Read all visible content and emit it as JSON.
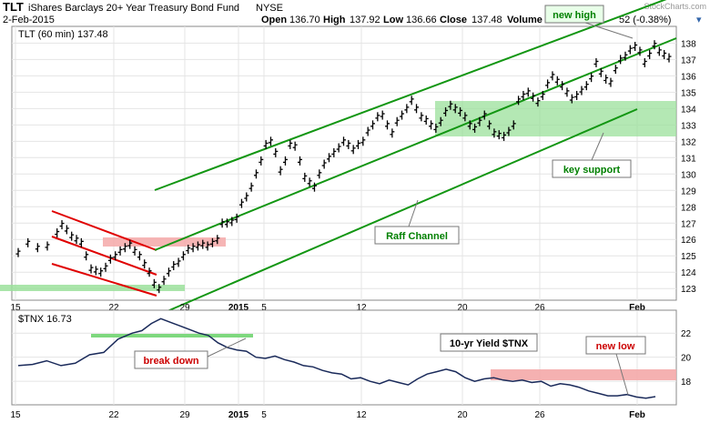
{
  "header": {
    "ticker": "TLT",
    "name": "iShares Barclays 20+ Year Treasury Bond Fund",
    "exchange": "NYSE",
    "date": "2-Feb-2015",
    "open_label": "Open",
    "open": "136.70",
    "high_label": "High",
    "high": "137.92",
    "low_label": "Low",
    "low": "136.66",
    "close_label": "Close",
    "close": "137.48",
    "volume_label": "Volume",
    "change": "52 (-0.38%)",
    "watermark": "StockCharts.com"
  },
  "chart_data": [
    {
      "type": "candlestick",
      "legend": "TLT (60 min) 137.48",
      "ylim": [
        122.4,
        138.8
      ],
      "y_ticks": [
        123,
        124,
        125,
        126,
        127,
        128,
        129,
        130,
        131,
        132,
        133,
        134,
        135,
        136,
        137,
        138
      ],
      "x_ticks": [
        "15",
        "22",
        "29",
        "2015",
        "5",
        "12",
        "20",
        "26",
        "Feb"
      ],
      "series_points": [
        [
          0,
          125.2
        ],
        [
          2,
          125.8
        ],
        [
          4,
          125.5
        ],
        [
          6,
          125.6
        ],
        [
          8,
          126.4
        ],
        [
          9,
          126.9
        ],
        [
          10,
          126.6
        ],
        [
          11,
          126.2
        ],
        [
          12,
          126.0
        ],
        [
          13,
          125.8
        ],
        [
          14,
          125.0
        ],
        [
          15,
          124.2
        ],
        [
          16,
          124.1
        ],
        [
          17,
          124.0
        ],
        [
          18,
          124.3
        ],
        [
          19,
          124.8
        ],
        [
          20,
          125.0
        ],
        [
          21,
          125.3
        ],
        [
          22,
          125.5
        ],
        [
          23,
          125.7
        ],
        [
          24,
          125.3
        ],
        [
          25,
          125.0
        ],
        [
          26,
          124.5
        ],
        [
          27,
          124.0
        ],
        [
          28,
          123.3
        ],
        [
          29,
          123.0
        ],
        [
          30,
          123.5
        ],
        [
          31,
          124.0
        ],
        [
          32,
          124.4
        ],
        [
          33,
          124.6
        ],
        [
          34,
          125.0
        ],
        [
          35,
          125.4
        ],
        [
          36,
          125.5
        ],
        [
          37,
          125.6
        ],
        [
          38,
          125.7
        ],
        [
          39,
          125.6
        ],
        [
          40,
          125.8
        ],
        [
          41,
          126.0
        ],
        [
          42,
          127.0
        ],
        [
          43,
          127.0
        ],
        [
          44,
          127.1
        ],
        [
          45,
          127.3
        ],
        [
          46,
          128.2
        ],
        [
          47,
          128.6
        ],
        [
          48,
          129.2
        ],
        [
          49,
          130.0
        ],
        [
          50,
          130.8
        ],
        [
          51,
          131.8
        ],
        [
          52,
          132.0
        ],
        [
          53,
          131.3
        ],
        [
          54,
          130.2
        ],
        [
          55,
          130.8
        ],
        [
          56,
          131.8
        ],
        [
          57,
          131.7
        ],
        [
          58,
          130.8
        ],
        [
          59,
          129.8
        ],
        [
          60,
          129.5
        ],
        [
          61,
          129.2
        ],
        [
          62,
          130.0
        ],
        [
          63,
          130.6
        ],
        [
          64,
          131.0
        ],
        [
          65,
          131.3
        ],
        [
          66,
          131.6
        ],
        [
          67,
          132.0
        ],
        [
          68,
          131.8
        ],
        [
          69,
          131.5
        ],
        [
          70,
          131.8
        ],
        [
          71,
          132.0
        ],
        [
          72,
          132.6
        ],
        [
          73,
          133.0
        ],
        [
          74,
          133.5
        ],
        [
          75,
          133.6
        ],
        [
          76,
          133.0
        ],
        [
          77,
          132.5
        ],
        [
          78,
          133.2
        ],
        [
          79,
          133.6
        ],
        [
          80,
          134.0
        ],
        [
          81,
          134.5
        ],
        [
          82,
          134.0
        ],
        [
          83,
          133.5
        ],
        [
          84,
          133.3
        ],
        [
          85,
          133.0
        ],
        [
          86,
          132.8
        ],
        [
          87,
          133.2
        ],
        [
          88,
          133.8
        ],
        [
          89,
          134.2
        ],
        [
          90,
          134.0
        ],
        [
          91,
          133.8
        ],
        [
          92,
          133.5
        ],
        [
          93,
          133.0
        ],
        [
          94,
          132.8
        ],
        [
          95,
          133.2
        ],
        [
          96,
          133.6
        ],
        [
          97,
          133.0
        ],
        [
          98,
          132.5
        ],
        [
          99,
          132.4
        ],
        [
          100,
          132.3
        ],
        [
          101,
          132.6
        ],
        [
          102,
          133.0
        ],
        [
          103,
          134.5
        ],
        [
          104,
          134.8
        ],
        [
          105,
          135.0
        ],
        [
          106,
          134.7
        ],
        [
          107,
          134.4
        ],
        [
          108,
          134.8
        ],
        [
          109,
          135.5
        ],
        [
          110,
          136.0
        ],
        [
          111,
          135.7
        ],
        [
          112,
          135.4
        ],
        [
          113,
          135.0
        ],
        [
          114,
          134.6
        ],
        [
          115,
          134.8
        ],
        [
          116,
          135.1
        ],
        [
          117,
          135.4
        ],
        [
          118,
          135.9
        ],
        [
          119,
          136.8
        ],
        [
          120,
          136.2
        ],
        [
          121,
          135.8
        ],
        [
          122,
          135.6
        ],
        [
          123,
          136.4
        ],
        [
          124,
          137.0
        ],
        [
          125,
          137.2
        ],
        [
          126,
          137.6
        ],
        [
          127,
          137.8
        ],
        [
          128,
          137.5
        ],
        [
          129,
          136.8
        ],
        [
          130,
          137.3
        ],
        [
          131,
          137.9
        ],
        [
          132,
          137.5
        ],
        [
          133,
          137.3
        ],
        [
          134,
          137.1
        ]
      ],
      "annotations": [
        {
          "text": "new high",
          "color": "#008000"
        },
        {
          "text": "key support",
          "color": "#008000"
        },
        {
          "text": "Raff Channel",
          "color": "#008000"
        }
      ]
    },
    {
      "type": "line",
      "legend": "$TNX 16.73",
      "label": "10-yr Yield $TNX",
      "ylim": [
        16.2,
        23.6
      ],
      "y_ticks": [
        18,
        20,
        22
      ],
      "x_ticks": [
        "15",
        "22",
        "29",
        "2015",
        "5",
        "12",
        "20",
        "26",
        "Feb"
      ],
      "series_points": [
        [
          0,
          19.3
        ],
        [
          3,
          19.4
        ],
        [
          6,
          19.7
        ],
        [
          9,
          19.3
        ],
        [
          12,
          19.5
        ],
        [
          15,
          20.2
        ],
        [
          18,
          20.4
        ],
        [
          21,
          21.5
        ],
        [
          24,
          22.0
        ],
        [
          26,
          22.2
        ],
        [
          28,
          22.8
        ],
        [
          30,
          23.2
        ],
        [
          32,
          22.9
        ],
        [
          34,
          22.6
        ],
        [
          36,
          22.3
        ],
        [
          38,
          22.0
        ],
        [
          40,
          21.8
        ],
        [
          42,
          21.2
        ],
        [
          44,
          20.8
        ],
        [
          46,
          20.6
        ],
        [
          48,
          20.5
        ],
        [
          50,
          20.0
        ],
        [
          52,
          19.9
        ],
        [
          54,
          20.1
        ],
        [
          56,
          19.8
        ],
        [
          58,
          19.6
        ],
        [
          60,
          19.3
        ],
        [
          62,
          19.2
        ],
        [
          64,
          18.9
        ],
        [
          66,
          18.7
        ],
        [
          68,
          18.6
        ],
        [
          70,
          18.2
        ],
        [
          72,
          18.3
        ],
        [
          74,
          18.0
        ],
        [
          76,
          17.8
        ],
        [
          78,
          18.1
        ],
        [
          80,
          17.9
        ],
        [
          82,
          17.7
        ],
        [
          84,
          18.2
        ],
        [
          86,
          18.6
        ],
        [
          88,
          18.8
        ],
        [
          90,
          19.0
        ],
        [
          92,
          18.8
        ],
        [
          94,
          18.3
        ],
        [
          96,
          18.0
        ],
        [
          98,
          18.2
        ],
        [
          100,
          18.3
        ],
        [
          102,
          18.1
        ],
        [
          104,
          18.0
        ],
        [
          106,
          18.1
        ],
        [
          108,
          17.9
        ],
        [
          110,
          18.0
        ],
        [
          112,
          17.6
        ],
        [
          114,
          17.8
        ],
        [
          116,
          17.7
        ],
        [
          118,
          17.5
        ],
        [
          120,
          17.2
        ],
        [
          122,
          17.0
        ],
        [
          124,
          16.8
        ],
        [
          126,
          16.8
        ],
        [
          128,
          16.9
        ],
        [
          130,
          16.7
        ],
        [
          132,
          16.6
        ],
        [
          134,
          16.73
        ]
      ],
      "annotations": [
        {
          "text": "break down",
          "color": "#cc0000"
        },
        {
          "text": "new low",
          "color": "#cc0000"
        }
      ]
    }
  ]
}
